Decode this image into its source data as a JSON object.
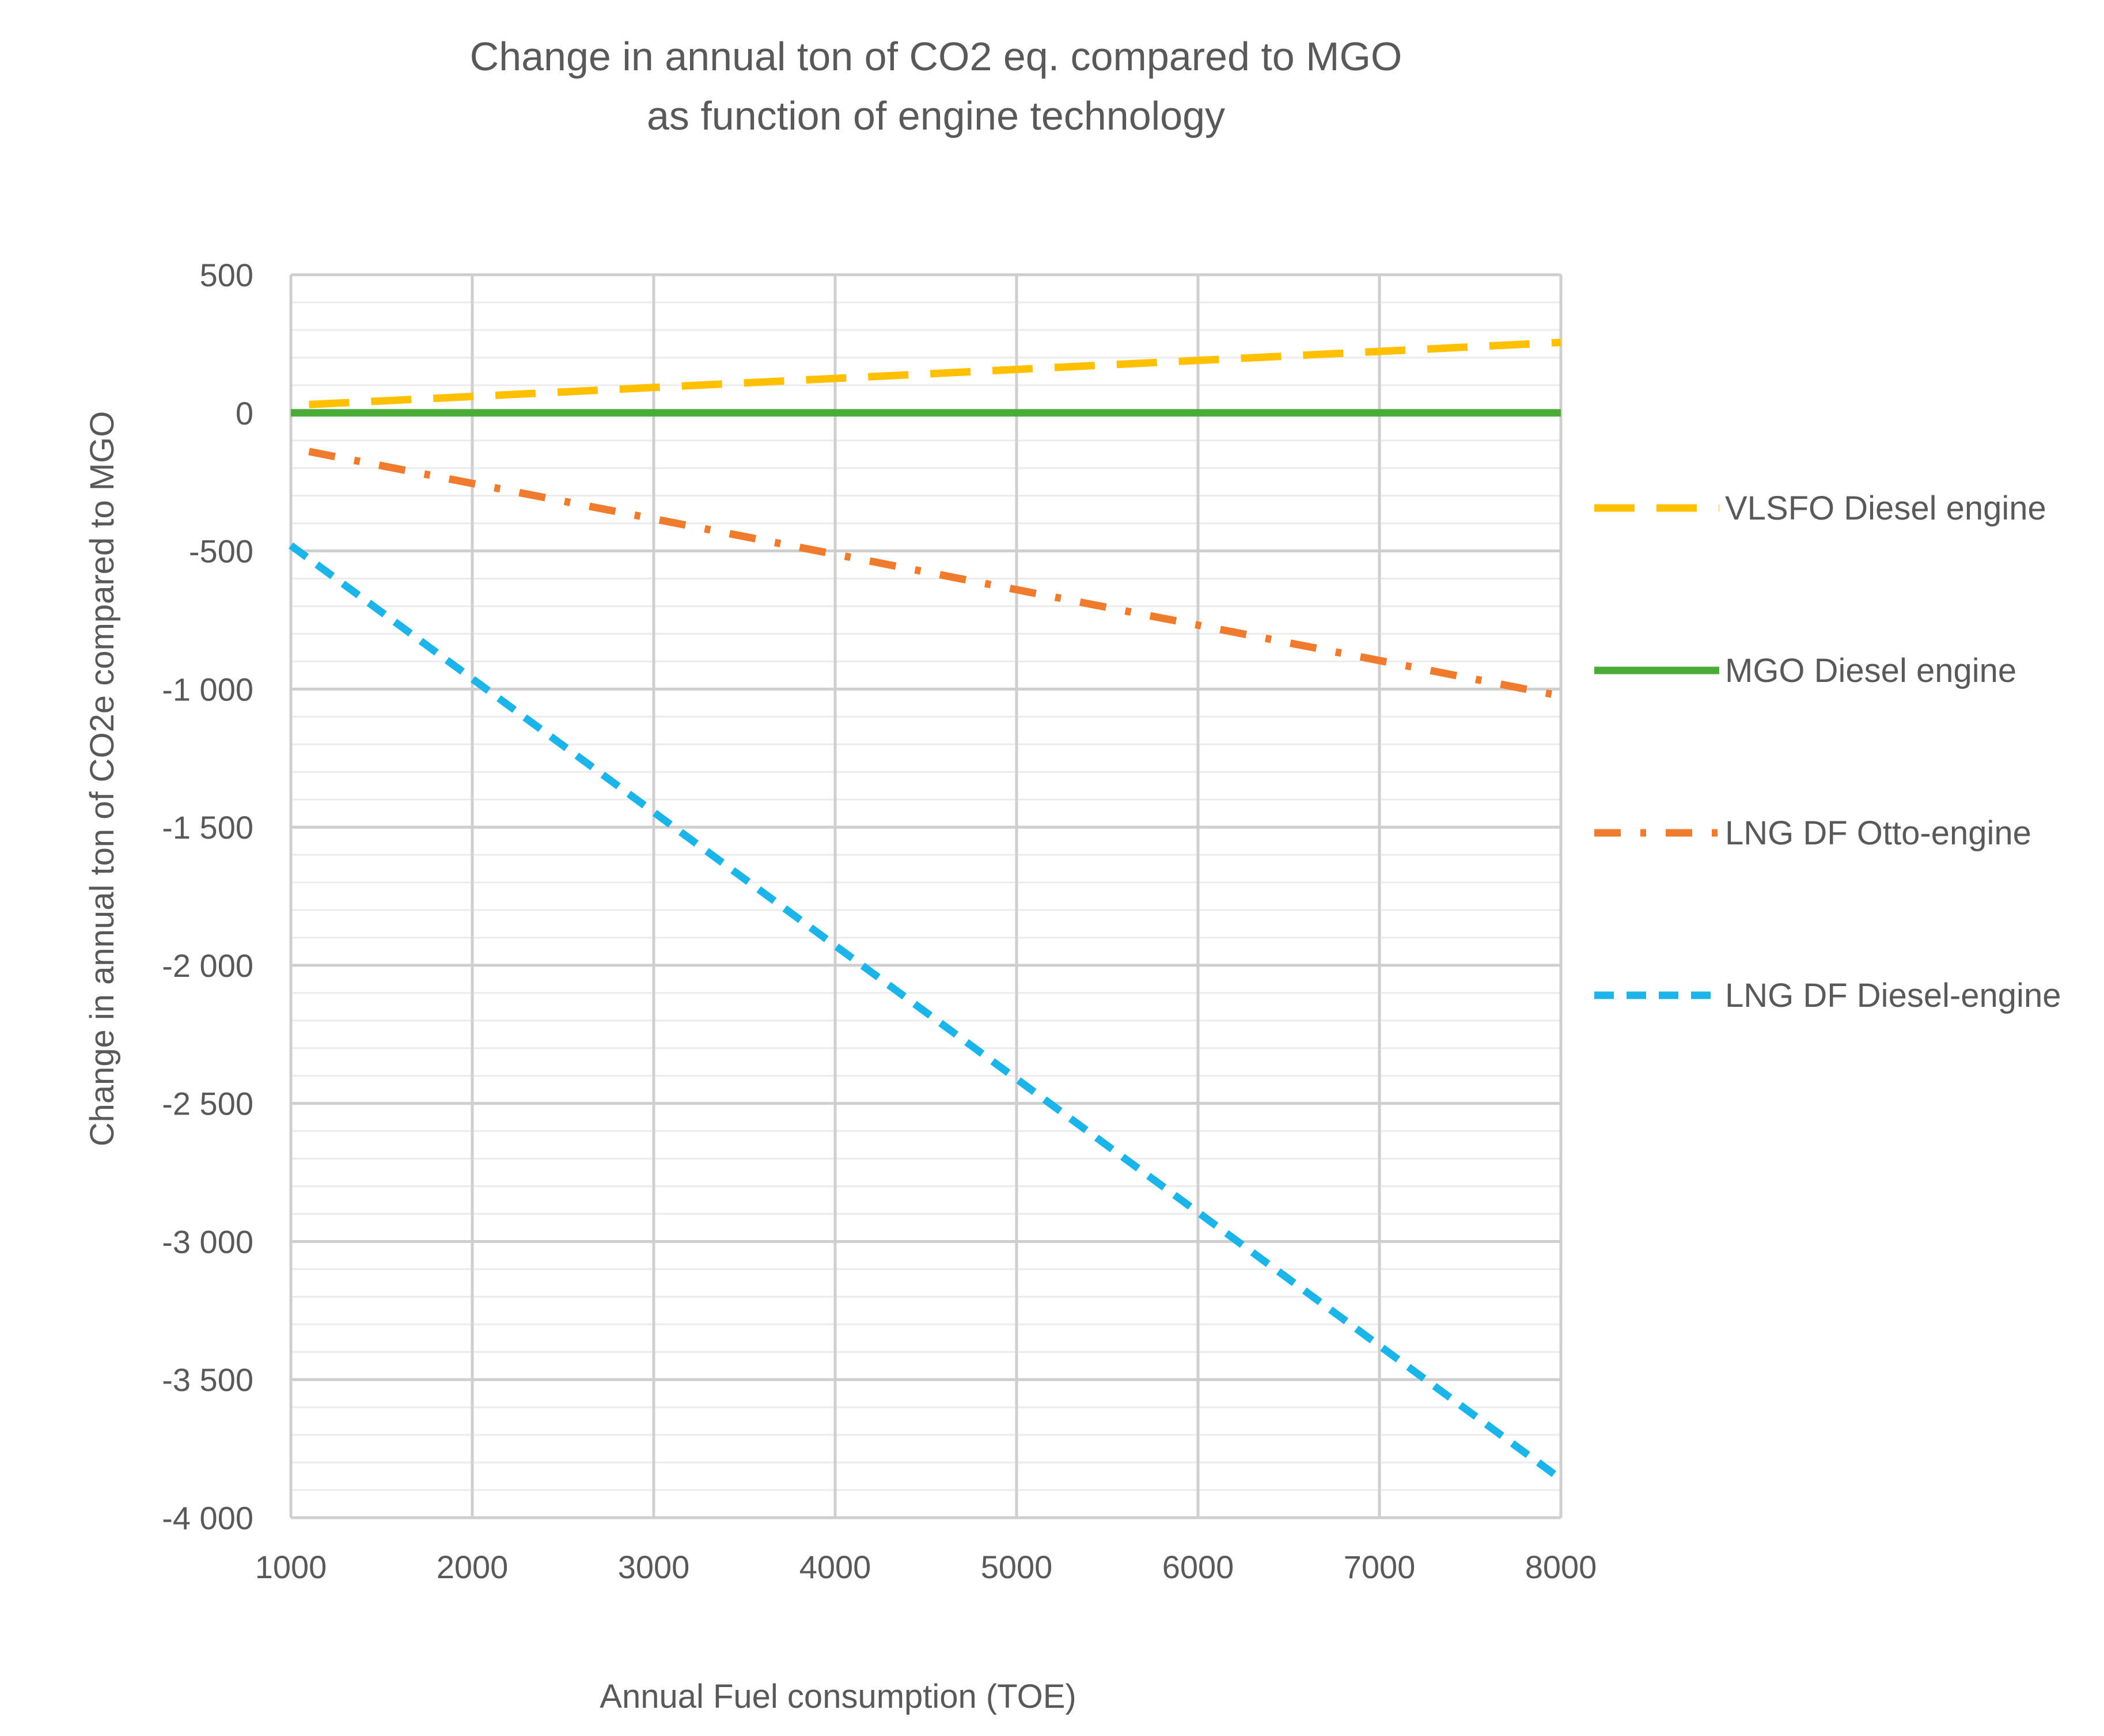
{
  "chart_data": {
    "type": "line",
    "title_lines": [
      "Change in annual ton of CO2 eq. compared to MGO",
      "as function of engine technology"
    ],
    "xlabel": "Annual Fuel consumption (TOE)",
    "ylabel": "Change in annual ton of CO2e compared to MGO",
    "xlim": [
      1000,
      8000
    ],
    "ylim": [
      -4000,
      500
    ],
    "x_ticks": [
      1000,
      2000,
      3000,
      4000,
      5000,
      6000,
      7000,
      8000
    ],
    "x_tick_labels": [
      "1000",
      "2000",
      "3000",
      "4000",
      "5000",
      "6000",
      "7000",
      "8000"
    ],
    "y_ticks": [
      500,
      0,
      -500,
      -1000,
      -1500,
      -2000,
      -2500,
      -3000,
      -3500,
      -4000
    ],
    "y_tick_labels": [
      "500",
      "0",
      "-500",
      "-1 000",
      "-1 500",
      "-2 000",
      "-2 500",
      "-3 000",
      "-3 500",
      "-4 000"
    ],
    "grid": true,
    "y_minor_step": 100,
    "legend_position": "right",
    "series": [
      {
        "name": "VLSFO Diesel engine",
        "style": "long-dash",
        "color": "#FFC000",
        "x": [
          1100,
          8000
        ],
        "y": [
          30,
          255
        ]
      },
      {
        "name": "MGO Diesel engine",
        "style": "solid",
        "color": "#4AAD38",
        "x": [
          1000,
          8000
        ],
        "y": [
          0,
          0
        ]
      },
      {
        "name": "LNG DF Otto-engine",
        "style": "dash-dot",
        "color": "#F07B2C",
        "x": [
          1100,
          8000
        ],
        "y": [
          -140,
          -1025
        ]
      },
      {
        "name": "LNG DF Diesel-engine",
        "style": "dash",
        "color": "#1CB5EA",
        "x": [
          1000,
          8000
        ],
        "y": [
          -480,
          -3860
        ]
      }
    ]
  }
}
